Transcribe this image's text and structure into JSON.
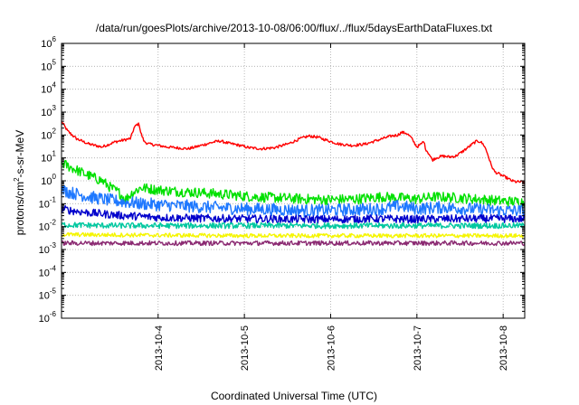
{
  "chart_data": {
    "type": "line",
    "title": "/data/run/goesPlots/archive/2013-10-08/06:00/flux/../flux/5daysEarthDataFluxes.txt",
    "xlabel": "Coordinated Universal Time (UTC)",
    "ylabel": "protons/cm2-s-sr-MeV",
    "ylabel_parts": {
      "pre": "protons/cm",
      "sup": "2",
      "post": "-s-sr-MeV"
    },
    "yscale": "log",
    "ylim": [
      1e-06,
      1000000.0
    ],
    "xlim": [
      2.88,
      8.25
    ],
    "x_unit": "day of October 2013 (UTC)",
    "x_ticks": [
      {
        "x": 4,
        "label": "2013-10-4"
      },
      {
        "x": 5,
        "label": "2013-10-5"
      },
      {
        "x": 6,
        "label": "2013-10-6"
      },
      {
        "x": 7,
        "label": "2013-10-7"
      },
      {
        "x": 8,
        "label": "2013-10-8"
      }
    ],
    "y_ticks": [
      {
        "exp": -6
      },
      {
        "exp": -5
      },
      {
        "exp": -4
      },
      {
        "exp": -3
      },
      {
        "exp": -2
      },
      {
        "exp": -1
      },
      {
        "exp": 0
      },
      {
        "exp": 1
      },
      {
        "exp": 2
      },
      {
        "exp": 3
      },
      {
        "exp": 4
      },
      {
        "exp": 5
      },
      {
        "exp": 6
      }
    ],
    "grid": true,
    "series": [
      {
        "color": "#ff0000",
        "x": [
          2.88,
          2.95,
          3.05,
          3.2,
          3.35,
          3.5,
          3.6,
          3.68,
          3.72,
          3.75,
          3.78,
          3.8,
          3.84,
          3.9,
          4.0,
          4.1,
          4.2,
          4.35,
          4.5,
          4.65,
          4.72,
          4.8,
          4.95,
          5.05,
          5.2,
          5.35,
          5.5,
          5.65,
          5.75,
          5.85,
          5.95,
          6.1,
          6.25,
          6.4,
          6.55,
          6.7,
          6.78,
          6.82,
          6.88,
          6.93,
          7.0,
          7.05,
          7.08,
          7.1,
          7.14,
          7.18,
          7.22,
          7.3,
          7.38,
          7.45,
          7.52,
          7.6,
          7.66,
          7.7,
          7.74,
          7.78,
          7.82,
          7.86,
          7.9,
          7.95,
          8.0,
          8.05,
          8.1,
          8.15,
          8.2,
          8.25
        ],
        "y": [
          400,
          150,
          70,
          40,
          30,
          50,
          60,
          70,
          200,
          280,
          300,
          120,
          50,
          40,
          35,
          30,
          28,
          25,
          35,
          50,
          55,
          45,
          35,
          28,
          25,
          28,
          40,
          70,
          90,
          80,
          60,
          40,
          35,
          40,
          60,
          90,
          100,
          130,
          120,
          80,
          30,
          40,
          55,
          25,
          15,
          8,
          10,
          12,
          11,
          12,
          18,
          30,
          45,
          55,
          50,
          35,
          15,
          5,
          2.5,
          2.0,
          1.6,
          1.3,
          1.0,
          0.9,
          0.9,
          0.85
        ],
        "noise": 0.12
      },
      {
        "color": "#00e000",
        "x": [
          2.88,
          2.95,
          3.05,
          3.15,
          3.25,
          3.35,
          3.45,
          3.55,
          3.62,
          3.7,
          3.8,
          3.9,
          4.0,
          4.2,
          4.5,
          4.8,
          5.1,
          5.4,
          5.7,
          6.0,
          6.3,
          6.6,
          6.8,
          7.0,
          7.2,
          7.5,
          7.8,
          8.0,
          8.25
        ],
        "y": [
          6,
          4.5,
          3,
          2,
          1.4,
          1.0,
          0.5,
          0.3,
          0.15,
          0.3,
          0.5,
          0.45,
          0.4,
          0.35,
          0.3,
          0.25,
          0.2,
          0.18,
          0.16,
          0.15,
          0.16,
          0.2,
          0.18,
          0.16,
          0.2,
          0.18,
          0.15,
          0.13,
          0.12
        ],
        "noise": 0.45
      },
      {
        "color": "#1e78ff",
        "x": [
          2.88,
          3.0,
          3.2,
          3.4,
          3.6,
          3.8,
          4.0,
          4.3,
          4.6,
          5.0,
          5.4,
          5.8,
          6.2,
          6.6,
          6.8,
          7.0,
          7.3,
          7.6,
          8.0,
          8.25
        ],
        "y": [
          0.4,
          0.3,
          0.2,
          0.15,
          0.12,
          0.1,
          0.09,
          0.08,
          0.07,
          0.06,
          0.055,
          0.05,
          0.055,
          0.06,
          0.08,
          0.06,
          0.07,
          0.06,
          0.05,
          0.05
        ],
        "noise": 0.55
      },
      {
        "color": "#0000cc",
        "x": [
          2.88,
          3.0,
          3.2,
          3.4,
          3.6,
          3.8,
          4.0,
          4.5,
          5.0,
          5.5,
          6.0,
          6.5,
          7.0,
          7.5,
          8.0,
          8.25
        ],
        "y": [
          0.06,
          0.05,
          0.04,
          0.035,
          0.03,
          0.028,
          0.025,
          0.023,
          0.022,
          0.021,
          0.021,
          0.022,
          0.021,
          0.022,
          0.022,
          0.022
        ],
        "noise": 0.35
      },
      {
        "color": "#00c8a0",
        "x": [
          2.88,
          3.5,
          4.0,
          5.0,
          6.0,
          7.0,
          8.0,
          8.25
        ],
        "y": [
          0.012,
          0.011,
          0.011,
          0.011,
          0.011,
          0.011,
          0.011,
          0.011
        ],
        "noise": 0.25
      },
      {
        "color": "#f5f500",
        "x": [
          2.88,
          4.0,
          5.0,
          6.0,
          7.0,
          8.0,
          8.25
        ],
        "y": [
          0.0045,
          0.0042,
          0.004,
          0.004,
          0.004,
          0.004,
          0.004
        ],
        "noise": 0.18
      },
      {
        "color": "#8b2a72",
        "x": [
          2.88,
          4.0,
          5.0,
          6.0,
          7.0,
          8.0,
          8.25
        ],
        "y": [
          0.0019,
          0.0019,
          0.0019,
          0.0019,
          0.0019,
          0.0019,
          0.0019
        ],
        "noise": 0.2
      }
    ]
  }
}
